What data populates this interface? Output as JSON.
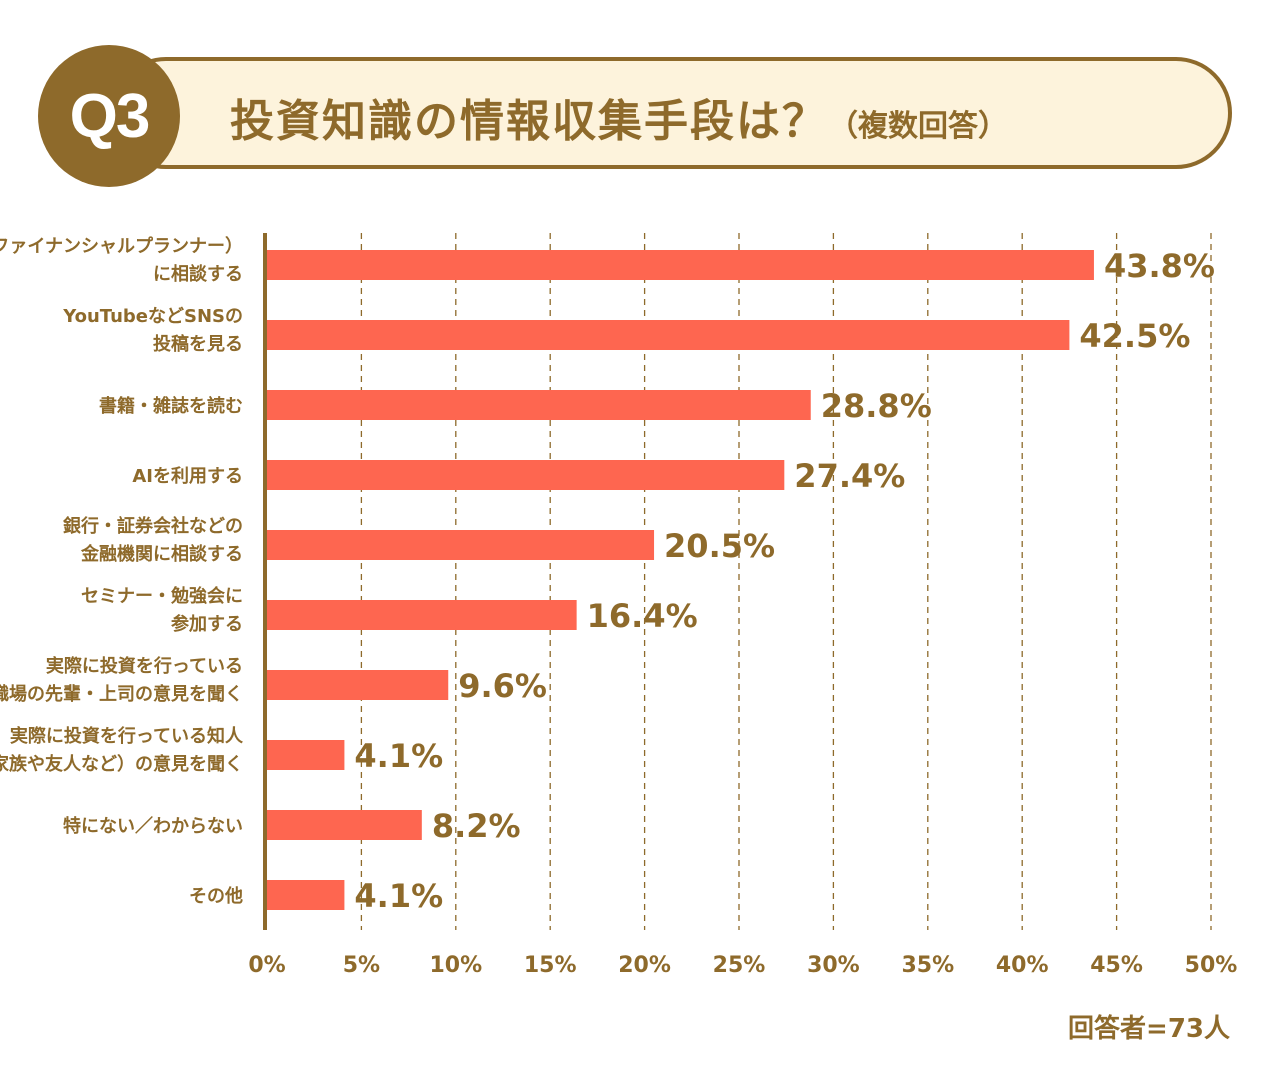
{
  "header": {
    "badge": "Q3",
    "title": "投資知識の情報収集手段は？",
    "subtitle": "（複数回答）"
  },
  "chart_data": {
    "type": "bar",
    "orientation": "horizontal",
    "categories": [
      [
        "FP（ファイナンシャルプランナー）",
        "に相談する"
      ],
      [
        "YouTubeなどSNSの",
        "投稿を見る"
      ],
      [
        "書籍・雑誌を読む"
      ],
      [
        "AIを利用する"
      ],
      [
        "銀行・証券会社などの",
        "金融機関に相談する"
      ],
      [
        "セミナー・勉強会に",
        "参加する"
      ],
      [
        "実際に投資を行っている",
        "職場の先輩・上司の意見を聞く"
      ],
      [
        "実際に投資を行っている知人",
        "（家族や友人など）の意見を聞く"
      ],
      [
        "特にない／わからない"
      ],
      [
        "その他"
      ]
    ],
    "values": [
      43.8,
      42.5,
      28.8,
      27.4,
      20.5,
      16.4,
      9.6,
      4.1,
      8.2,
      4.1
    ],
    "data_labels": [
      "43.8%",
      "42.5%",
      "28.8%",
      "27.4%",
      "20.5%",
      "16.4%",
      "9.6%",
      "4.1%",
      "8.2%",
      "4.1%"
    ],
    "xlim": [
      0,
      50
    ],
    "xticks": [
      "0%",
      "5%",
      "10%",
      "15%",
      "20%",
      "25%",
      "30%",
      "35%",
      "40%",
      "45%",
      "50%"
    ],
    "grid": "vertical dashed",
    "colors": {
      "bar": "#fe6650",
      "text": "#8e6a2b",
      "banner_bg": "#fdf3dc"
    }
  },
  "footer": {
    "respondents": "回答者=73人"
  }
}
